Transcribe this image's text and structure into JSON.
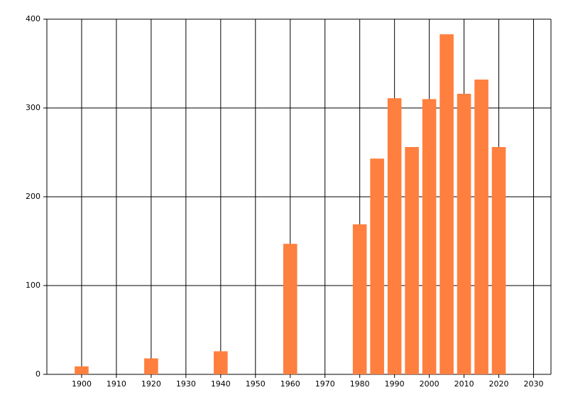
{
  "chart_data": {
    "type": "bar",
    "x": [
      1900,
      1920,
      1940,
      1960,
      1980,
      1985,
      1990,
      1995,
      2000,
      2005,
      2010,
      2015,
      2020
    ],
    "values": [
      9,
      18,
      26,
      147,
      169,
      243,
      311,
      256,
      310,
      383,
      316,
      332,
      256
    ],
    "color": "#ff7f3f",
    "xlim": [
      1890,
      2035
    ],
    "xticks": [
      1900,
      1910,
      1920,
      1930,
      1940,
      1950,
      1960,
      1970,
      1980,
      1990,
      2000,
      2010,
      2020,
      2030
    ],
    "ylim": [
      0,
      400
    ],
    "yticks": [
      0,
      100,
      200,
      300,
      400
    ],
    "grid": true
  }
}
